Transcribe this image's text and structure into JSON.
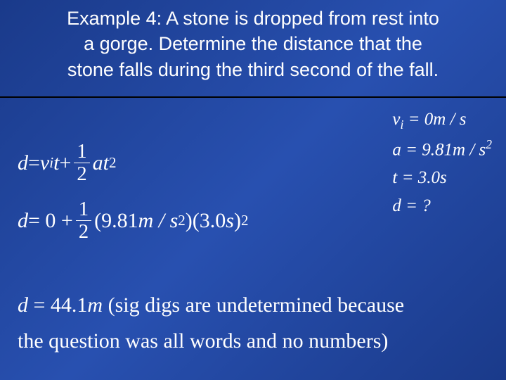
{
  "colors": {
    "background_gradient_start": "#1a3a8a",
    "background_gradient_mid": "#2850b0",
    "text": "#ffffff",
    "divider": "#000000"
  },
  "title": {
    "line1": "Example 4: A stone is dropped from rest into",
    "line2": "a gorge.  Determine the distance that the",
    "line3": "stone falls during the third second of the fall.",
    "fontsize": 27
  },
  "given": {
    "vi_label": "v",
    "vi_sub": "i",
    "vi_eq": " = 0",
    "vi_unit": "m / s",
    "a_label": "a",
    "a_eq": " = 9.81",
    "a_unit_base": "m / s",
    "a_unit_exp": "2",
    "t_label": "t",
    "t_eq": " = 3.0",
    "t_unit": "s",
    "d_label": "d",
    "d_eq": " = ?",
    "fontsize": 25
  },
  "formula": {
    "lhs": "d",
    "eq": " = ",
    "term1_v": "v",
    "term1_i": "i",
    "term1_t": "t",
    "plus": " + ",
    "frac_num": "1",
    "frac_den": "2",
    "term2_a": "a",
    "term2_t": "t",
    "term2_exp": "2"
  },
  "substitution": {
    "lhs": "d",
    "eq": " = 0 + ",
    "frac_num": "1",
    "frac_den": "2",
    "factor1_open": "(9.81",
    "factor1_unit": "m / s",
    "factor1_exp": "2",
    "factor1_close": ")(3.0",
    "factor2_unit": "s",
    "factor2_close": ")",
    "factor2_exp": "2"
  },
  "result": {
    "lhs": "d",
    "eq": " = 44.1",
    "unit": "m",
    "note1": "  (sig digs are undetermined because",
    "note2": "the question was all words and no numbers)",
    "fontsize": 30
  }
}
